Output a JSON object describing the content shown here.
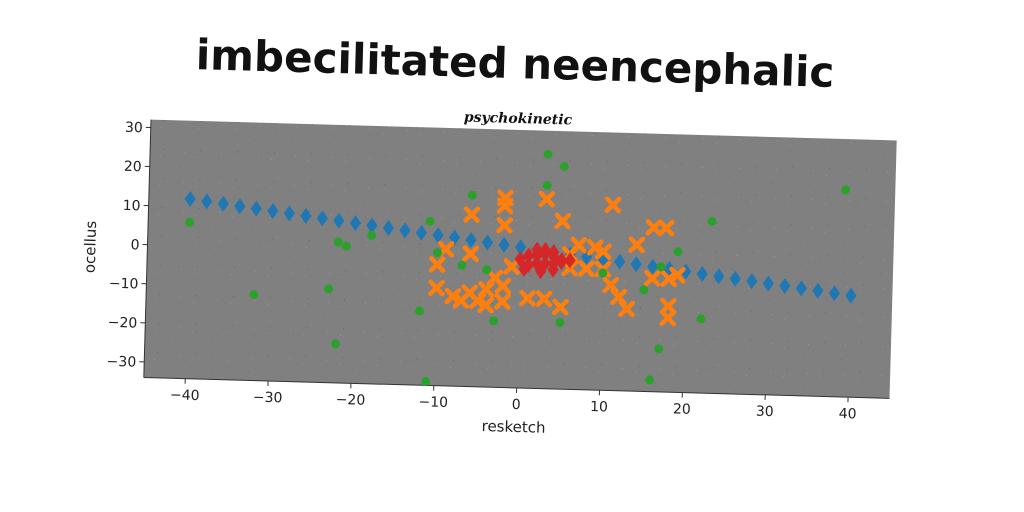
{
  "chart_data": {
    "type": "scatter",
    "title": "imbecilitated neencephalic",
    "subtitle": "psychokinetic",
    "xlabel": "resketch",
    "ylabel": "ocellus",
    "xlim": [
      -45,
      45
    ],
    "ylim": [
      -34,
      32
    ],
    "xticks": [
      -40,
      -30,
      -20,
      -10,
      0,
      10,
      20,
      30,
      40
    ],
    "yticks": [
      -30,
      -20,
      -10,
      0,
      10,
      20,
      30
    ],
    "grid": false,
    "legend": "none",
    "background_color": "#808080",
    "series": [
      {
        "marker": "diamond",
        "color": "#1f77b4",
        "points": [
          [
            -40,
            12
          ],
          [
            -38,
            11.5
          ],
          [
            -36,
            11
          ],
          [
            -34,
            10.5
          ],
          [
            -32,
            10
          ],
          [
            -30,
            9.5
          ],
          [
            -28,
            9
          ],
          [
            -26,
            8.5
          ],
          [
            -24,
            8
          ],
          [
            -22,
            7.5
          ],
          [
            -20,
            7
          ],
          [
            -18,
            6.5
          ],
          [
            -16,
            6
          ],
          [
            -14,
            5.5
          ],
          [
            -12,
            5
          ],
          [
            -10,
            4.5
          ],
          [
            -8,
            4
          ],
          [
            -6,
            3.5
          ],
          [
            -4,
            3
          ],
          [
            -2,
            2.5
          ],
          [
            0,
            2
          ],
          [
            2,
            1.5
          ],
          [
            4,
            1
          ],
          [
            6,
            0.5
          ],
          [
            8,
            0
          ],
          [
            10,
            -0.5
          ],
          [
            12,
            -1
          ],
          [
            14,
            -1.5
          ],
          [
            16,
            -2
          ],
          [
            18,
            -2.5
          ],
          [
            20,
            -3
          ],
          [
            22,
            -3.5
          ],
          [
            24,
            -4
          ],
          [
            26,
            -4.5
          ],
          [
            28,
            -5
          ],
          [
            30,
            -5.5
          ],
          [
            32,
            -6
          ],
          [
            34,
            -6.5
          ],
          [
            36,
            -7
          ],
          [
            38,
            -7.5
          ],
          [
            40,
            -8
          ]
        ]
      },
      {
        "marker": "x",
        "color": "#ff7f0e",
        "points": [
          [
            -2,
            14.5
          ],
          [
            -2,
            12.5
          ],
          [
            3,
            14.5
          ],
          [
            11,
            13.5
          ],
          [
            -6,
            10
          ],
          [
            5,
            9
          ],
          [
            -2,
            7.5
          ],
          [
            16,
            8
          ],
          [
            17.5,
            8
          ],
          [
            -9,
            1
          ],
          [
            -6,
            0
          ],
          [
            7,
            3
          ],
          [
            9,
            2.5
          ],
          [
            10,
            1.5
          ],
          [
            14,
            3.5
          ],
          [
            6,
            0.5
          ],
          [
            -10,
            -3
          ],
          [
            -1,
            -3
          ],
          [
            -3,
            -6
          ],
          [
            6,
            -3
          ],
          [
            8,
            -3
          ],
          [
            10,
            -3
          ],
          [
            11,
            -7
          ],
          [
            16,
            -5
          ],
          [
            18,
            -5
          ],
          [
            19,
            -4
          ],
          [
            -10,
            -9
          ],
          [
            -4,
            -9
          ],
          [
            -8,
            -11
          ],
          [
            -7,
            -12
          ],
          [
            -5,
            -12
          ],
          [
            -4,
            -13
          ],
          [
            -2,
            -12
          ],
          [
            1,
            -11
          ],
          [
            3,
            -11
          ],
          [
            5,
            -13
          ],
          [
            12,
            -10
          ],
          [
            13,
            -13
          ],
          [
            18,
            -12
          ],
          [
            18,
            -15
          ],
          [
            -6,
            -10
          ],
          [
            -2,
            -8
          ]
        ]
      },
      {
        "marker": "diamond",
        "color": "#d62728",
        "points": [
          [
            0,
            -1
          ],
          [
            1,
            0
          ],
          [
            2,
            0
          ],
          [
            3,
            0.5
          ],
          [
            4,
            0
          ],
          [
            5,
            -1
          ],
          [
            1,
            -2.5
          ],
          [
            2,
            -2
          ],
          [
            3,
            -2
          ],
          [
            4,
            -2
          ],
          [
            5,
            -1.5
          ],
          [
            6,
            -1
          ],
          [
            2,
            1.5
          ],
          [
            3,
            1.5
          ],
          [
            4,
            1
          ],
          [
            0.5,
            -3.5
          ],
          [
            2.5,
            -4
          ],
          [
            4,
            -3.5
          ]
        ]
      },
      {
        "marker": "circle",
        "color": "#2ca02c",
        "points": [
          [
            3,
            26
          ],
          [
            5,
            23
          ],
          [
            3,
            18
          ],
          [
            -6,
            15
          ],
          [
            -40,
            6
          ],
          [
            -22,
            2
          ],
          [
            -21,
            1
          ],
          [
            -18,
            4
          ],
          [
            -11,
            8
          ],
          [
            -10,
            0
          ],
          [
            -7,
            -3
          ],
          [
            -4,
            -4
          ],
          [
            10,
            -4
          ],
          [
            15,
            -8
          ],
          [
            17,
            -2
          ],
          [
            19,
            2
          ],
          [
            23,
            10
          ],
          [
            39,
            19
          ],
          [
            -32,
            -12
          ],
          [
            -23,
            -10
          ],
          [
            -12,
            -15
          ],
          [
            -3,
            -17
          ],
          [
            5,
            -17
          ],
          [
            22,
            -15
          ],
          [
            17,
            -23
          ],
          [
            -22,
            -24
          ],
          [
            16,
            -31
          ],
          [
            -11,
            -33
          ]
        ]
      }
    ]
  }
}
